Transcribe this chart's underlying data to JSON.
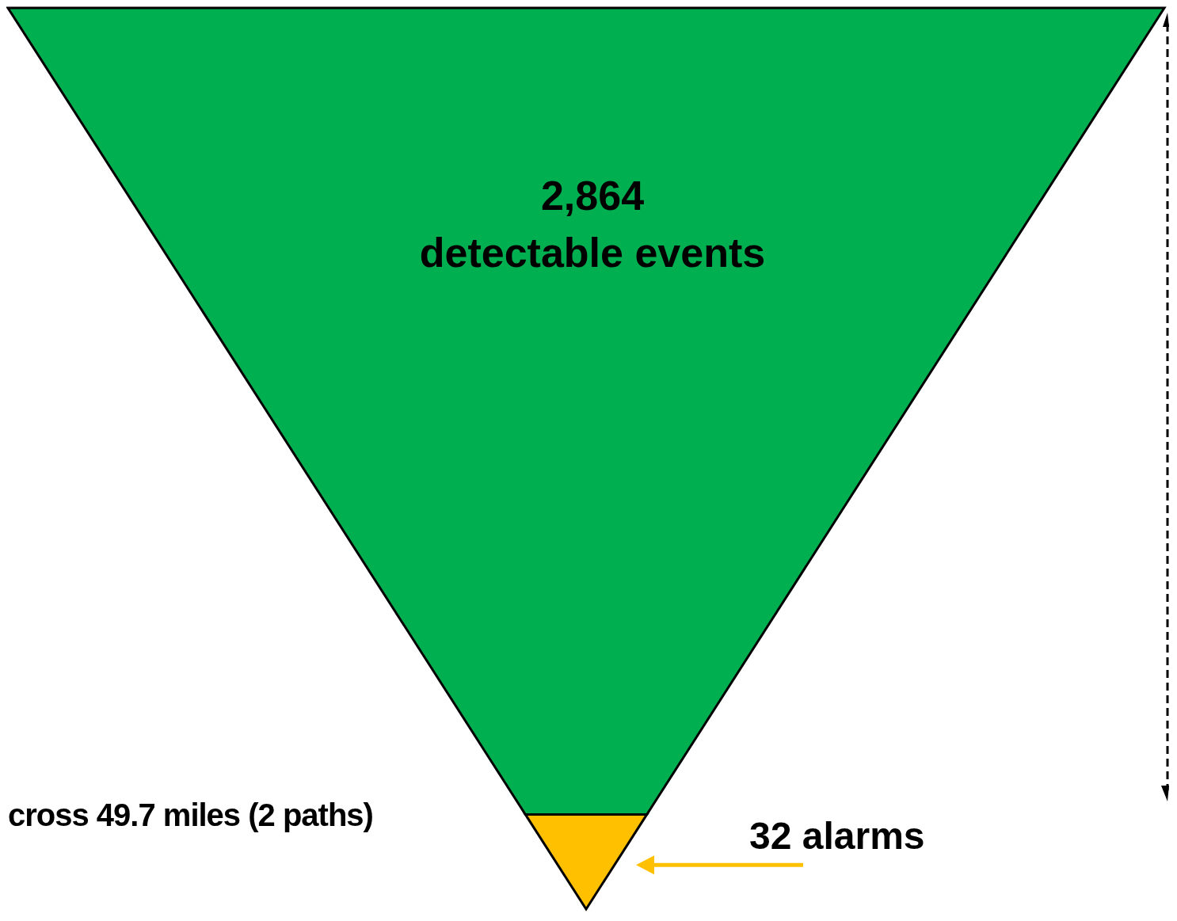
{
  "chart_data": {
    "type": "other",
    "categories": [
      "detectable events",
      "alarms"
    ],
    "values": [
      2864,
      32
    ],
    "value_labels": [
      "2,864",
      "32"
    ],
    "colors": [
      "#00b050",
      "#ffc000"
    ],
    "annotations": [
      "cross 49.7 miles (2 paths)"
    ]
  }
}
